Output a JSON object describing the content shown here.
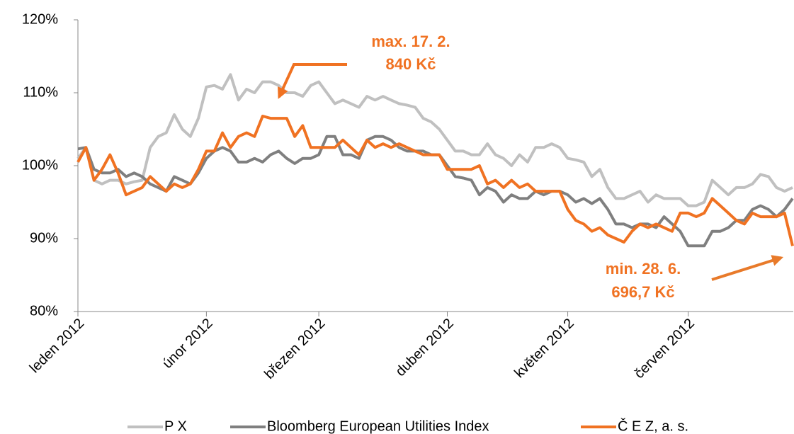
{
  "chart_data": {
    "type": "line",
    "categories": [
      "leden 2012",
      null,
      null,
      null,
      null,
      null,
      null,
      null,
      null,
      null,
      null,
      null,
      null,
      null,
      null,
      null,
      "únor 2012",
      null,
      null,
      null,
      null,
      null,
      null,
      null,
      null,
      null,
      null,
      null,
      null,
      null,
      "březen 2012",
      null,
      null,
      null,
      null,
      null,
      null,
      null,
      null,
      null,
      null,
      null,
      null,
      null,
      null,
      null,
      "duben 2012",
      null,
      null,
      null,
      null,
      null,
      null,
      null,
      null,
      null,
      null,
      null,
      null,
      null,
      null,
      "květen 2012",
      null,
      null,
      null,
      null,
      null,
      null,
      null,
      null,
      null,
      null,
      null,
      null,
      null,
      null,
      "červen 2012",
      null,
      null,
      null,
      null,
      null,
      null,
      null,
      null,
      null,
      null,
      null,
      null,
      null
    ],
    "series": [
      {
        "name": "P X",
        "color": "#c0c0c0",
        "values": [
          101,
          102.5,
          98,
          97.5,
          98,
          98,
          97.5,
          97.8,
          98,
          102.5,
          104,
          104.5,
          107,
          105,
          104,
          106.5,
          110.8,
          111,
          110.5,
          112.5,
          109,
          110.5,
          110,
          111.5,
          111.5,
          111,
          110,
          110,
          109.5,
          111,
          111.5,
          110,
          108.5,
          109,
          108.5,
          108,
          109.5,
          109,
          109.5,
          109,
          108.5,
          108.3,
          108,
          106.5,
          106,
          105,
          103.5,
          102,
          102,
          101.5,
          101.5,
          103,
          101.5,
          101,
          100,
          101.5,
          100.5,
          102.5,
          102.5,
          103,
          102.5,
          101,
          100.8,
          100.5,
          98.5,
          99.5,
          97,
          95.5,
          95.5,
          96,
          96.5,
          95,
          96,
          95.5,
          95.5,
          95.5,
          94.5,
          94.5,
          95,
          98,
          97,
          96,
          97,
          97,
          97.5,
          98.8,
          98.5,
          97,
          96.5,
          97
        ]
      },
      {
        "name": "Bloomberg European Utilities Index",
        "color": "#7f7f7f",
        "values": [
          102.3,
          102.5,
          99.5,
          99,
          99,
          99.5,
          98.5,
          99,
          98.5,
          97.5,
          97,
          96.5,
          98.5,
          98,
          97.5,
          99,
          101,
          102,
          102.5,
          102,
          100.5,
          100.5,
          101,
          100.5,
          101.5,
          102,
          101,
          100.3,
          101,
          101,
          101.5,
          104,
          104,
          101.5,
          101.5,
          101,
          103.5,
          104,
          104,
          103.5,
          102.5,
          102,
          102,
          102,
          101.5,
          101.5,
          100,
          98.5,
          98.3,
          98,
          96,
          97,
          96.5,
          95,
          96,
          95.5,
          95.5,
          96.5,
          96,
          96.5,
          96.5,
          96,
          95,
          95.5,
          94.8,
          95.5,
          94,
          92,
          92,
          91.5,
          92,
          92,
          91.5,
          93,
          92,
          91,
          89,
          89,
          89,
          91,
          91,
          91.5,
          92.5,
          92.5,
          94,
          94.5,
          94,
          93,
          94,
          95.5
        ]
      },
      {
        "name": "Č E Z, a. s.",
        "color": "#f07222",
        "values": [
          100.5,
          102.5,
          98,
          99.5,
          101.5,
          99,
          96,
          96.5,
          97,
          98.5,
          97.5,
          96.5,
          97.5,
          97,
          97.5,
          99.5,
          102,
          102,
          104.5,
          102.5,
          104,
          104.5,
          104,
          106.8,
          106.5,
          106.5,
          106.5,
          104,
          105.5,
          102.5,
          102.5,
          102.5,
          102.5,
          103.5,
          102.5,
          101.5,
          103.5,
          102.5,
          103,
          102.5,
          103,
          102.5,
          102,
          101.5,
          101.5,
          101.5,
          99.5,
          99.5,
          99.5,
          99.5,
          100,
          97.5,
          98,
          97,
          98,
          97,
          97.5,
          96.5,
          96.5,
          96.5,
          96.5,
          94,
          92.5,
          92,
          91,
          91.5,
          90.5,
          90,
          89.5,
          91,
          92,
          91.5,
          92,
          91.5,
          91,
          93.5,
          93.5,
          93,
          93.5,
          95.5,
          94.5,
          93.5,
          92.5,
          92,
          93.5,
          93,
          93,
          93,
          93.5,
          89
        ]
      }
    ],
    "ylim": [
      80,
      120
    ],
    "yticks": [
      {
        "value": 80,
        "label": "80%"
      },
      {
        "value": 90,
        "label": "90%"
      },
      {
        "value": 100,
        "label": "100%"
      },
      {
        "value": 110,
        "label": "110%"
      },
      {
        "value": 120,
        "label": "120%"
      }
    ],
    "grid": false,
    "legend": "bottom",
    "annotations": [
      {
        "lines": [
          "max. 17. 2.",
          "840 Kč"
        ]
      },
      {
        "lines": [
          "min. 28. 6.",
          "696,7 Kč"
        ]
      }
    ]
  }
}
